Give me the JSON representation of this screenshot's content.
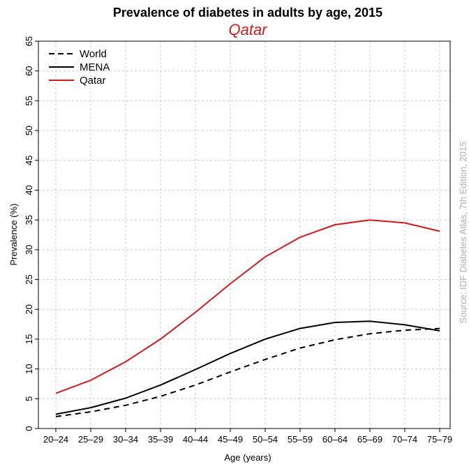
{
  "chart_data": {
    "type": "line",
    "title": "Prevalence of diabetes in adults by age, 2015",
    "subtitle": "Qatar",
    "xlabel": "Age (years)",
    "ylabel": "Prevalence (%)",
    "source": "Source: IDF Diabetes Atlas, 7th Edition, 2015",
    "categories": [
      "20–24",
      "25–29",
      "30–34",
      "35–39",
      "40–44",
      "45–49",
      "50–54",
      "55–59",
      "60–64",
      "65–69",
      "70–74",
      "75–79"
    ],
    "ylim": [
      0,
      65
    ],
    "yticks": [
      0,
      5,
      10,
      15,
      20,
      25,
      30,
      35,
      40,
      45,
      50,
      55,
      60,
      65
    ],
    "grid": true,
    "legend_position": "top-left",
    "series": [
      {
        "name": "World",
        "color": "#000000",
        "style": "dashed",
        "values": [
          2.0,
          2.8,
          3.9,
          5.4,
          7.3,
          9.5,
          11.6,
          13.5,
          14.9,
          15.9,
          16.5,
          16.8
        ]
      },
      {
        "name": "MENA",
        "color": "#000000",
        "style": "solid",
        "values": [
          2.4,
          3.5,
          5.1,
          7.3,
          9.9,
          12.6,
          15.0,
          16.8,
          17.8,
          18.0,
          17.4,
          16.4
        ]
      },
      {
        "name": "Qatar",
        "color": "#d7191c",
        "style": "solid",
        "values": [
          5.9,
          8.1,
          11.2,
          15.0,
          19.5,
          24.3,
          28.8,
          32.1,
          34.2,
          35.0,
          34.5,
          33.1
        ]
      }
    ]
  }
}
